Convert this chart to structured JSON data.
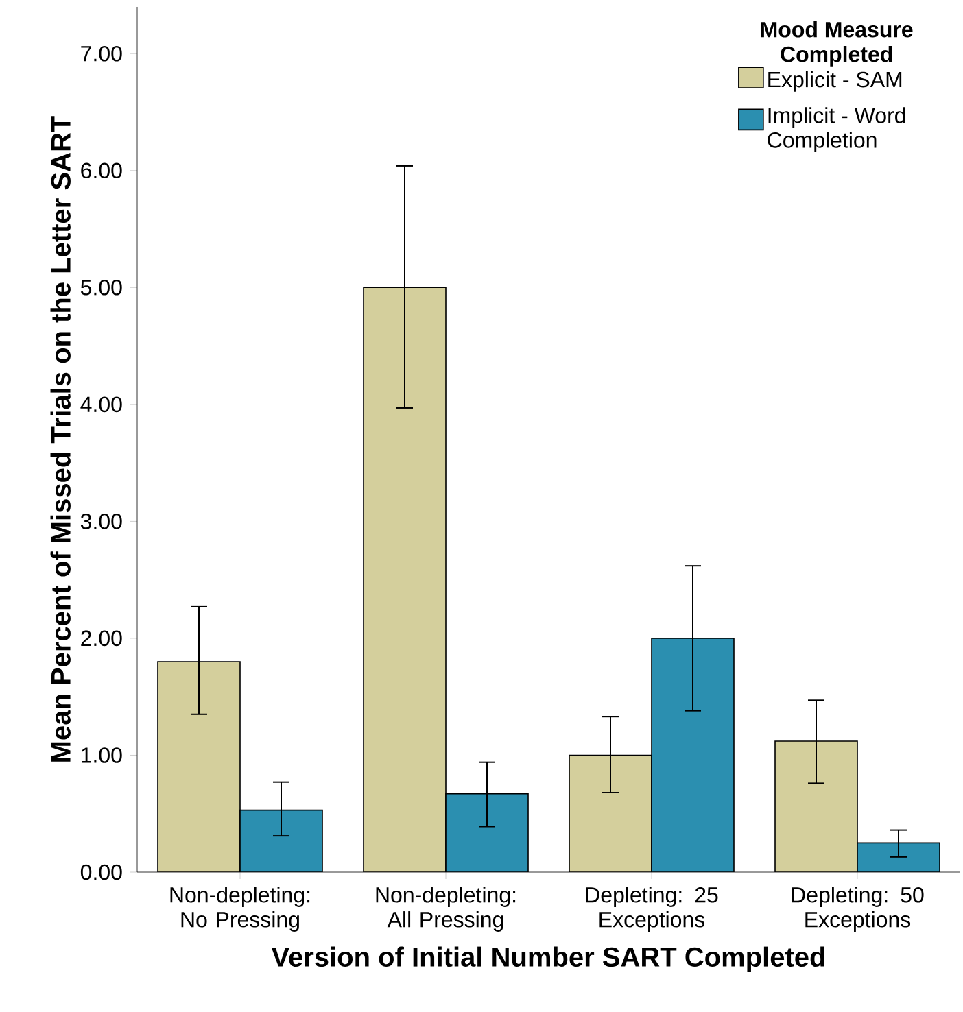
{
  "chart_data": {
    "type": "bar",
    "xlabel": "Version of Initial Number SART Completed",
    "ylabel": "Mean Percent of Missed Trials on the Letter SART",
    "legend_title": "Mood Measure Completed",
    "legend": "top right",
    "categories": [
      "Non-depleting: No Pressing",
      "Non-depleting: All Pressing",
      "Depleting: 25 Exceptions",
      "Depleting: 50 Exceptions"
    ],
    "series": [
      {
        "name": "Explicit - SAM",
        "color": "#d4cf9c",
        "values": [
          1.8,
          5.0,
          1.0,
          1.12
        ],
        "errors": [
          [
            1.35,
            2.27
          ],
          [
            3.97,
            6.04
          ],
          [
            0.68,
            1.33
          ],
          [
            0.76,
            1.47
          ]
        ]
      },
      {
        "name": "Implicit - Word Completion",
        "color": "#2b8fb0",
        "values": [
          0.53,
          0.67,
          2.0,
          0.25
        ],
        "errors": [
          [
            0.31,
            0.77
          ],
          [
            0.39,
            0.94
          ],
          [
            1.38,
            2.62
          ],
          [
            0.13,
            0.36
          ]
        ]
      }
    ],
    "ylim": [
      0,
      7.4
    ],
    "yticks": [
      {
        "value": 0,
        "label": "0.00"
      },
      {
        "value": 1,
        "label": "1.00"
      },
      {
        "value": 2,
        "label": "2.00"
      },
      {
        "value": 3,
        "label": "3.00"
      },
      {
        "value": 4,
        "label": "4.00"
      },
      {
        "value": 5,
        "label": "5.00"
      },
      {
        "value": 6,
        "label": "6.00"
      },
      {
        "value": 7,
        "label": "7.00"
      }
    ]
  }
}
